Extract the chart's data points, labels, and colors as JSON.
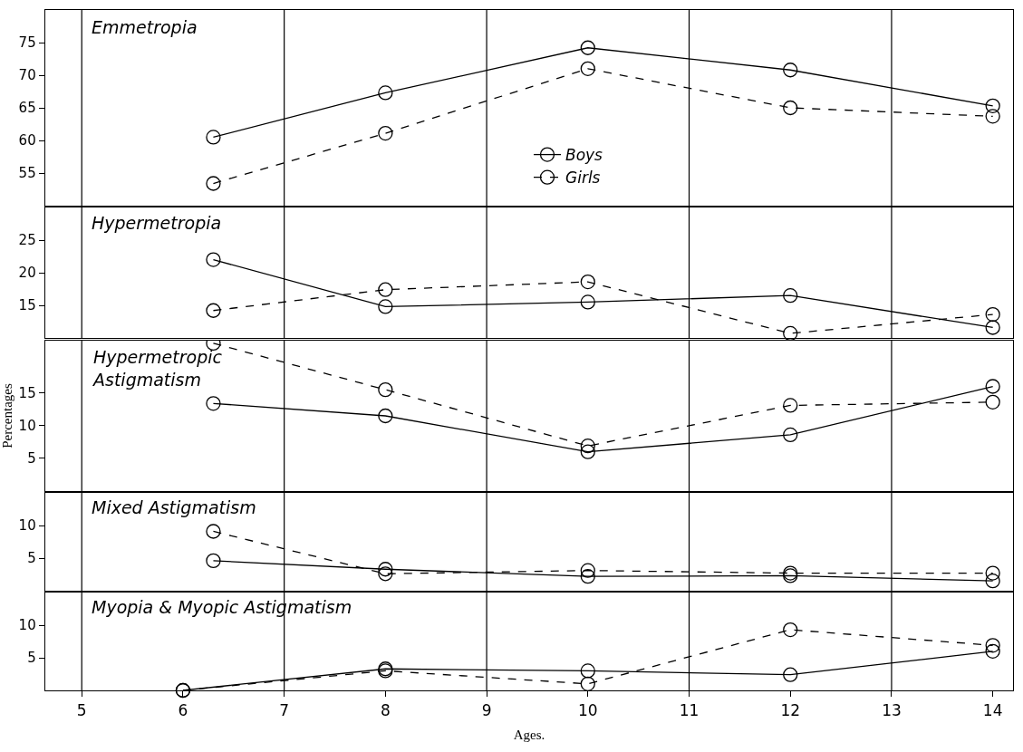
{
  "chart_data": [
    {
      "type": "line",
      "title": "Emmetropia",
      "x": [
        6.3,
        8,
        10,
        12,
        14
      ],
      "xlim": [
        4.64,
        14.2
      ],
      "xticks": [
        5,
        6,
        7,
        8,
        9,
        10,
        11,
        12,
        13,
        14
      ],
      "ylim": [
        50,
        80
      ],
      "yticks": [
        55,
        60,
        65,
        70,
        75
      ],
      "tick_labels": "y",
      "marker": "circle",
      "legend": "bottom",
      "grid": false,
      "ref_lines": [
        {
          "axis": "x",
          "value": 5,
          "color": "#000000"
        },
        {
          "axis": "x",
          "value": 7,
          "color": "#000000"
        },
        {
          "axis": "x",
          "value": 9,
          "color": "#000000"
        },
        {
          "axis": "x",
          "value": 11,
          "color": "#000000"
        },
        {
          "axis": "x",
          "value": 13,
          "color": "#000000"
        }
      ],
      "series": [
        {
          "name": "Boys",
          "color": "#000000",
          "line_style": "solid",
          "values": [
            60.5,
            67.3,
            74.2,
            70.8,
            65.3
          ]
        },
        {
          "name": "Girls",
          "color": "#000000",
          "line_style": "dashed",
          "values": [
            53.4,
            61.1,
            71.0,
            65.0,
            63.7
          ]
        }
      ]
    },
    {
      "type": "line",
      "title": "Hypermetropia",
      "x": [
        6.3,
        8,
        10,
        12,
        14
      ],
      "xlim": [
        4.64,
        14.2
      ],
      "xticks": [
        5,
        6,
        7,
        8,
        9,
        10,
        11,
        12,
        13,
        14
      ],
      "ylim": [
        10,
        30
      ],
      "yticks": [
        15,
        20,
        25
      ],
      "tick_labels": "y",
      "marker": "circle",
      "grid": false,
      "ref_lines": [
        {
          "axis": "x",
          "value": 5,
          "color": "#000000"
        },
        {
          "axis": "x",
          "value": 7,
          "color": "#000000"
        },
        {
          "axis": "x",
          "value": 9,
          "color": "#000000"
        },
        {
          "axis": "x",
          "value": 11,
          "color": "#000000"
        },
        {
          "axis": "x",
          "value": 13,
          "color": "#000000"
        }
      ],
      "series": [
        {
          "color": "#000000",
          "line_style": "solid",
          "values": [
            22.0,
            14.8,
            15.5,
            16.5,
            11.6
          ]
        },
        {
          "color": "#000000",
          "line_style": "dashed",
          "values": [
            14.2,
            17.4,
            18.6,
            10.7,
            13.6
          ]
        }
      ]
    },
    {
      "type": "line",
      "title": "Hypermetropic\nAstigmatism",
      "ylabel": "Percentages",
      "x": [
        6.3,
        8,
        10,
        12,
        14
      ],
      "xlim": [
        4.64,
        14.2
      ],
      "xticks": [
        5,
        6,
        7,
        8,
        9,
        10,
        11,
        12,
        13,
        14
      ],
      "ylim": [
        0,
        23
      ],
      "yticks": [
        5,
        10,
        15
      ],
      "tick_labels": "y",
      "marker": "circle",
      "grid": false,
      "ref_lines": [
        {
          "axis": "x",
          "value": 5,
          "color": "#000000"
        },
        {
          "axis": "x",
          "value": 7,
          "color": "#000000"
        },
        {
          "axis": "x",
          "value": 9,
          "color": "#000000"
        },
        {
          "axis": "x",
          "value": 11,
          "color": "#000000"
        },
        {
          "axis": "x",
          "value": 13,
          "color": "#000000"
        }
      ],
      "series": [
        {
          "color": "#000000",
          "line_style": "solid",
          "values": [
            13.4,
            11.5,
            6.0,
            8.6,
            16.0
          ]
        },
        {
          "color": "#000000",
          "line_style": "dashed",
          "values": [
            22.6,
            15.5,
            6.9,
            13.1,
            13.6
          ]
        }
      ]
    },
    {
      "type": "line",
      "title": "Mixed Astigmatism",
      "x": [
        6.3,
        8,
        10,
        12,
        14
      ],
      "xlim": [
        4.64,
        14.2
      ],
      "xticks": [
        5,
        6,
        7,
        8,
        9,
        10,
        11,
        12,
        13,
        14
      ],
      "ylim": [
        0,
        15
      ],
      "yticks": [
        5,
        10
      ],
      "tick_labels": "y",
      "marker": "circle",
      "grid": false,
      "ref_lines": [
        {
          "axis": "x",
          "value": 5,
          "color": "#000000"
        },
        {
          "axis": "x",
          "value": 7,
          "color": "#000000"
        },
        {
          "axis": "x",
          "value": 9,
          "color": "#000000"
        },
        {
          "axis": "x",
          "value": 11,
          "color": "#000000"
        },
        {
          "axis": "x",
          "value": 13,
          "color": "#000000"
        }
      ],
      "series": [
        {
          "color": "#000000",
          "line_style": "solid",
          "values": [
            4.6,
            3.3,
            2.2,
            2.3,
            1.5
          ]
        },
        {
          "color": "#000000",
          "line_style": "dashed",
          "values": [
            9.1,
            2.6,
            3.1,
            2.7,
            2.7
          ]
        }
      ]
    },
    {
      "type": "line",
      "title": "Myopia & Myopic Astigmatism",
      "xlabel": "Ages.",
      "x": [
        6,
        8,
        10,
        12,
        14
      ],
      "xlim": [
        4.64,
        14.2
      ],
      "xticks": [
        5,
        6,
        7,
        8,
        9,
        10,
        11,
        12,
        13,
        14
      ],
      "ylim": [
        0,
        15
      ],
      "yticks": [
        5,
        10
      ],
      "marker": "circle",
      "grid": false,
      "ref_lines": [
        {
          "axis": "x",
          "value": 5,
          "color": "#000000"
        },
        {
          "axis": "x",
          "value": 7,
          "color": "#000000"
        },
        {
          "axis": "x",
          "value": 9,
          "color": "#000000"
        },
        {
          "axis": "x",
          "value": 11,
          "color": "#000000"
        },
        {
          "axis": "x",
          "value": 13,
          "color": "#000000"
        }
      ],
      "series": [
        {
          "color": "#000000",
          "line_style": "solid",
          "values": [
            0,
            3.3,
            3.0,
            2.4,
            6.0
          ]
        },
        {
          "color": "#000000",
          "line_style": "dashed",
          "values": [
            0,
            3.0,
            1.0,
            9.3,
            6.9
          ]
        }
      ]
    }
  ]
}
